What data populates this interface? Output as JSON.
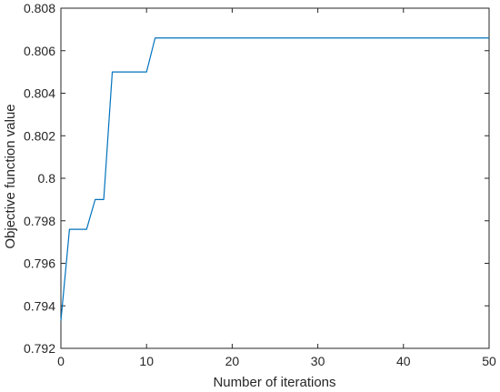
{
  "chart_data": {
    "type": "line",
    "title": "",
    "xlabel": "Number of iterations",
    "ylabel": "Objective function value",
    "xlim": [
      0,
      50
    ],
    "ylim": [
      0.792,
      0.808
    ],
    "x_ticks": [
      0,
      10,
      20,
      30,
      40,
      50
    ],
    "x_tick_labels": [
      "0",
      "10",
      "20",
      "30",
      "40",
      "50"
    ],
    "y_ticks": [
      0.792,
      0.794,
      0.796,
      0.798,
      0.8,
      0.802,
      0.804,
      0.806,
      0.808
    ],
    "y_tick_labels": [
      "0.792",
      "0.794",
      "0.796",
      "0.798",
      "0.8",
      "0.802",
      "0.804",
      "0.806",
      "0.808"
    ],
    "grid": false,
    "series": [
      {
        "color": "#0072BD",
        "x": [
          0,
          1,
          2,
          3,
          4,
          5,
          6,
          7,
          8,
          9,
          10,
          11,
          12,
          13,
          14,
          15,
          16,
          17,
          18,
          19,
          20,
          21,
          22,
          23,
          24,
          25,
          26,
          27,
          28,
          29,
          30,
          31,
          32,
          33,
          34,
          35,
          36,
          37,
          38,
          39,
          40,
          41,
          42,
          43,
          44,
          45,
          46,
          47,
          48,
          49,
          50
        ],
        "y": [
          0.7933,
          0.7976,
          0.7976,
          0.7976,
          0.799,
          0.799,
          0.805,
          0.805,
          0.805,
          0.805,
          0.805,
          0.8066,
          0.8066,
          0.8066,
          0.8066,
          0.8066,
          0.8066,
          0.8066,
          0.8066,
          0.8066,
          0.8066,
          0.8066,
          0.8066,
          0.8066,
          0.8066,
          0.8066,
          0.8066,
          0.8066,
          0.8066,
          0.8066,
          0.8066,
          0.8066,
          0.8066,
          0.8066,
          0.8066,
          0.8066,
          0.8066,
          0.8066,
          0.8066,
          0.8066,
          0.8066,
          0.8066,
          0.8066,
          0.8066,
          0.8066,
          0.8066,
          0.8066,
          0.8066,
          0.8066,
          0.8066,
          0.8066
        ]
      }
    ]
  }
}
